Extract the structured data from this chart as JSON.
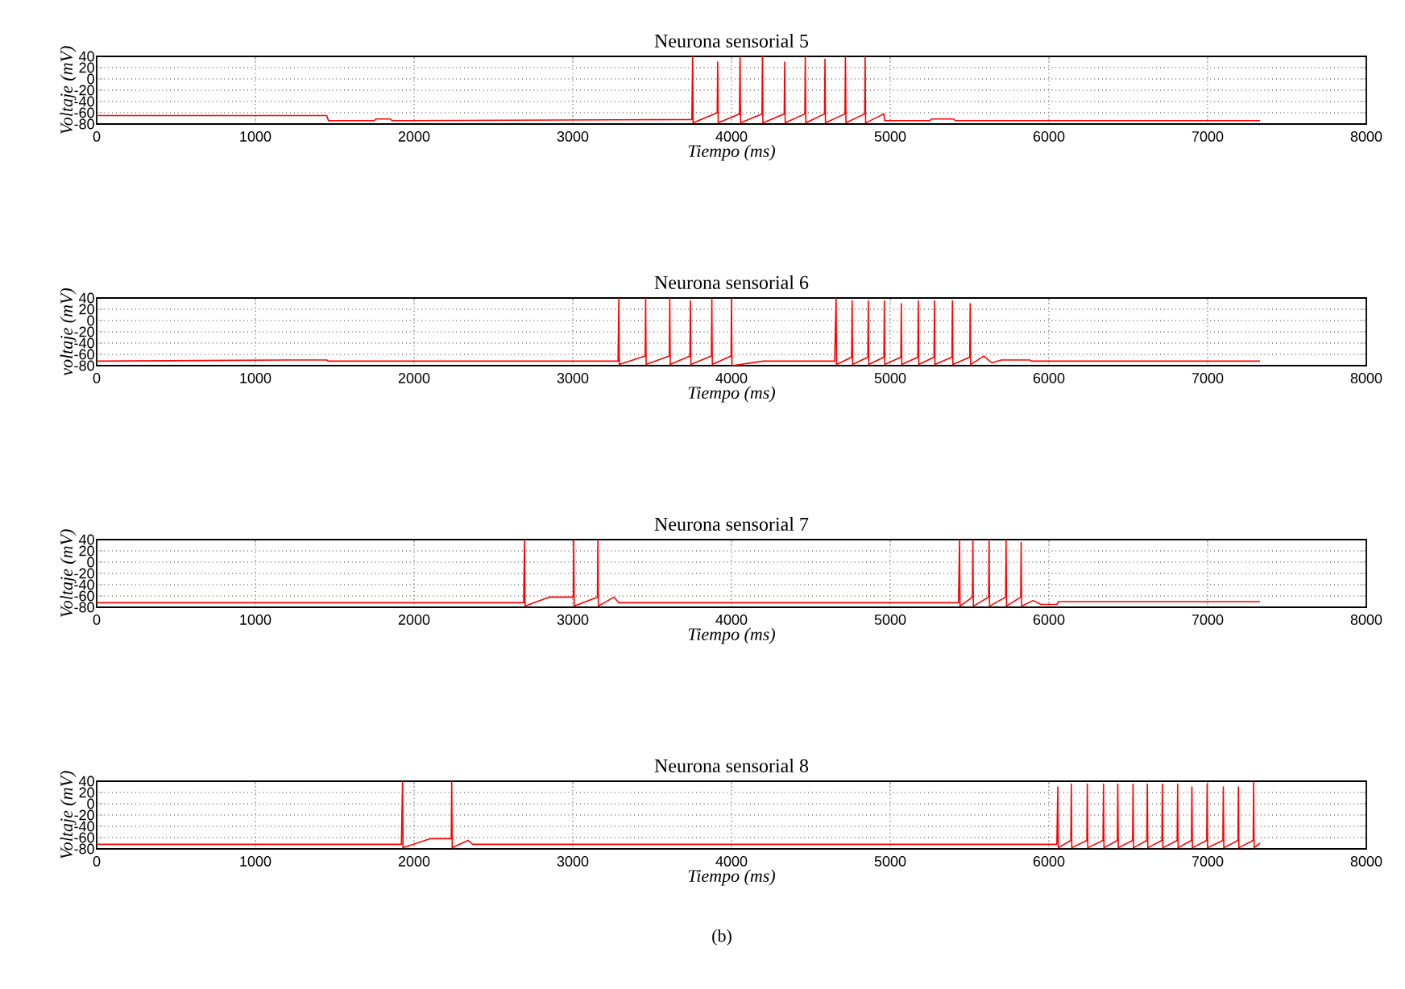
{
  "chart_data": [
    {
      "type": "line",
      "title": "Neurona sensorial 5",
      "xlabel": "Tiempo (ms)",
      "ylabel": "Voltaje (mV)",
      "xlim": [
        0,
        8000
      ],
      "ylim": [
        -80,
        40
      ],
      "xticks": [
        0,
        1000,
        2000,
        3000,
        4000,
        5000,
        6000,
        7000,
        8000
      ],
      "yticks": [
        -80,
        -60,
        -40,
        -20,
        0,
        20,
        40
      ],
      "grid": true,
      "series": [
        {
          "color": "#ff0000",
          "x": [
            0,
            1450,
            1460,
            1750,
            1760,
            1850,
            1860,
            3750,
            3755,
            3758,
            3910,
            3913,
            3916,
            4050,
            4054,
            4057,
            4192,
            4195,
            4198,
            4332,
            4335,
            4338,
            4462,
            4465,
            4468,
            4586,
            4589,
            4592,
            4715,
            4718,
            4721,
            4839,
            4842,
            4845,
            4960,
            4965,
            5250,
            5260,
            5400,
            5410,
            7330
          ],
          "values": [
            -65,
            -65,
            -74,
            -74,
            -71,
            -71,
            -74,
            -72,
            40,
            -78,
            -60,
            30,
            -78,
            -62,
            40,
            -78,
            -62,
            40,
            -78,
            -62,
            30,
            -78,
            -62,
            40,
            -78,
            -62,
            35,
            -78,
            -62,
            40,
            -78,
            -62,
            40,
            -78,
            -62,
            -74,
            -74,
            -71,
            -71,
            -74,
            -74
          ]
        }
      ]
    },
    {
      "type": "line",
      "title": "Neurona sensorial 6",
      "xlabel": "Tiempo (ms)",
      "ylabel": "voltaje (mV)",
      "xlim": [
        0,
        8000
      ],
      "ylim": [
        -80,
        40
      ],
      "xticks": [
        0,
        1000,
        2000,
        3000,
        4000,
        5000,
        6000,
        7000,
        8000
      ],
      "yticks": [
        -80,
        -60,
        -40,
        -20,
        0,
        20,
        40
      ],
      "grid": true,
      "series": [
        {
          "color": "#ff0000",
          "x": [
            0,
            1200,
            1450,
            1460,
            3285,
            3290,
            3293,
            3456,
            3459,
            3462,
            3608,
            3611,
            3614,
            3738,
            3741,
            3744,
            3873,
            3876,
            3879,
            3997,
            4000,
            4003,
            4200,
            4650,
            4659,
            4662,
            4757,
            4760,
            4763,
            4859,
            4862,
            4865,
            4960,
            4963,
            4966,
            5067,
            5070,
            5073,
            5174,
            5177,
            5180,
            5276,
            5279,
            5282,
            5389,
            5392,
            5395,
            5501,
            5504,
            5507,
            5590,
            5640,
            5700,
            5880,
            5890,
            7330
          ],
          "values": [
            -72,
            -70,
            -70,
            -72,
            -72,
            40,
            -78,
            -63,
            40,
            -78,
            -63,
            40,
            -78,
            -63,
            35,
            -78,
            -63,
            40,
            -78,
            -63,
            40,
            -80,
            -72,
            -72,
            40,
            -78,
            -65,
            35,
            -78,
            -65,
            35,
            -78,
            -65,
            35,
            -78,
            -65,
            30,
            -78,
            -65,
            35,
            -78,
            -65,
            35,
            -78,
            -65,
            35,
            -78,
            -65,
            30,
            -78,
            -63,
            -75,
            -70,
            -70,
            -72,
            -72
          ]
        }
      ]
    },
    {
      "type": "line",
      "title": "Neurona sensorial 7",
      "xlabel": "Tiempo (ms)",
      "ylabel": "Voltaje (mV)",
      "xlim": [
        0,
        8000
      ],
      "ylim": [
        -80,
        40
      ],
      "xticks": [
        0,
        1000,
        2000,
        3000,
        4000,
        5000,
        6000,
        7000,
        8000
      ],
      "yticks": [
        -80,
        -60,
        -40,
        -20,
        0,
        20,
        40
      ],
      "grid": true,
      "series": [
        {
          "color": "#ff0000",
          "x": [
            0,
            2690,
            2696,
            2699,
            2850,
            3003,
            3006,
            3009,
            3155,
            3158,
            3161,
            3260,
            3290,
            5430,
            5437,
            5440,
            5518,
            5521,
            5524,
            5620,
            5623,
            5626,
            5727,
            5730,
            5733,
            5822,
            5825,
            5828,
            5900,
            5950,
            6050,
            6060,
            7330
          ],
          "values": [
            -72,
            -72,
            40,
            -78,
            -62,
            -62,
            40,
            -78,
            -62,
            40,
            -78,
            -62,
            -72,
            -72,
            40,
            -78,
            -62,
            40,
            -78,
            -62,
            40,
            -78,
            -62,
            40,
            -78,
            -62,
            35,
            -78,
            -68,
            -75,
            -75,
            -70,
            -70
          ]
        }
      ]
    },
    {
      "type": "line",
      "title": "Neurona sensorial 8",
      "xlabel": "Tiempo (ms)",
      "ylabel": "Voltaje (mV)",
      "xlim": [
        0,
        8000
      ],
      "ylim": [
        -80,
        40
      ],
      "xticks": [
        0,
        1000,
        2000,
        3000,
        4000,
        5000,
        6000,
        7000,
        8000
      ],
      "yticks": [
        -80,
        -60,
        -40,
        -20,
        0,
        20,
        40
      ],
      "grid": true,
      "annotations": [
        "(b)"
      ],
      "series": [
        {
          "color": "#ff0000",
          "x": [
            0,
            1920,
            1927,
            1930,
            2100,
            2234,
            2237,
            2240,
            2340,
            2370,
            6050,
            6056,
            6059,
            6138,
            6141,
            6144,
            6239,
            6242,
            6245,
            6341,
            6344,
            6347,
            6431,
            6434,
            6437,
            6527,
            6530,
            6533,
            6617,
            6620,
            6623,
            6712,
            6715,
            6718,
            6808,
            6811,
            6814,
            6898,
            6901,
            6904,
            6994,
            6997,
            7000,
            7096,
            7099,
            7102,
            7191,
            7194,
            7197,
            7287,
            7290,
            7293,
            7330
          ],
          "values": [
            -72,
            -72,
            40,
            -78,
            -62,
            -62,
            40,
            -78,
            -65,
            -72,
            -72,
            30,
            -78,
            -65,
            35,
            -78,
            -65,
            35,
            -78,
            -65,
            35,
            -78,
            -65,
            35,
            -78,
            -65,
            35,
            -78,
            -65,
            35,
            -78,
            -65,
            35,
            -78,
            -65,
            35,
            -78,
            -65,
            30,
            -78,
            -65,
            35,
            -78,
            -65,
            30,
            -78,
            -65,
            30,
            -78,
            -65,
            40,
            -78,
            -70
          ]
        }
      ]
    }
  ]
}
